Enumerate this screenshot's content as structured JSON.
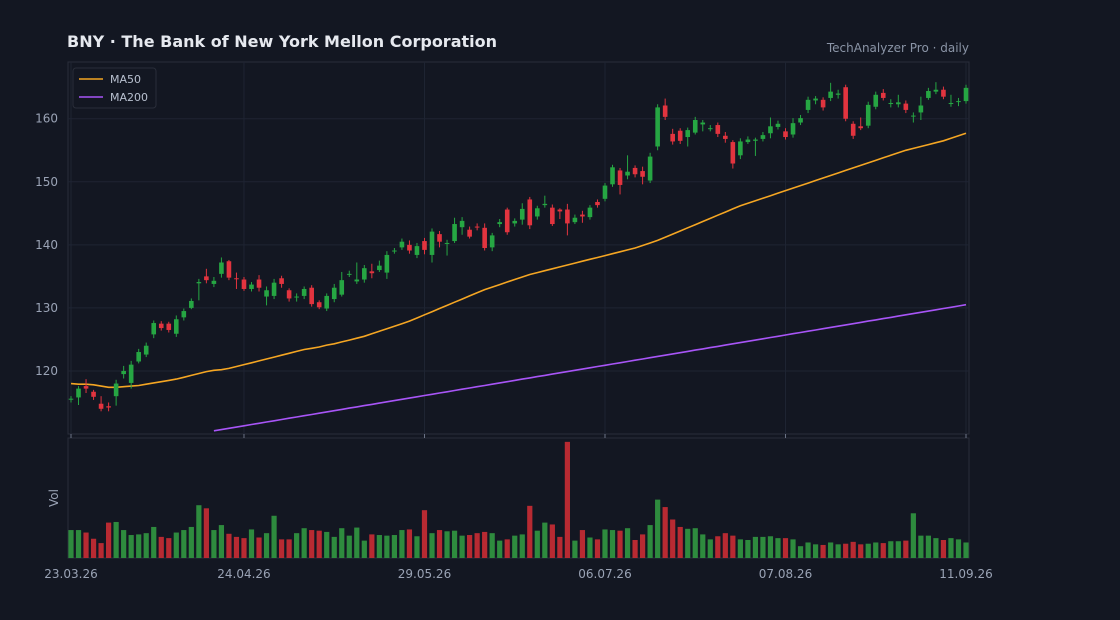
{
  "header": {
    "title": "BNY  ·  The Bank of New York Mellon Corporation",
    "source": "TechAnalyzer Pro · daily"
  },
  "colors": {
    "background": "#131722",
    "panel_border": "#2a2e3a",
    "grid": "#1f2433",
    "up": "#26a643",
    "down": "#e2343f",
    "vol_up": "#2e8b3e",
    "vol_down": "#b82a32",
    "ma50": "#f5a623",
    "ma200": "#a855f7"
  },
  "chart_data": {
    "type": "candlestick",
    "title": "BNY  ·  The Bank of New York Mellon Corporation",
    "subtitle": "TechAnalyzer Pro · daily",
    "y_ticks": [
      120,
      130,
      140,
      150,
      160
    ],
    "ylim": [
      110.0,
      169.0
    ],
    "x_tick_labels": [
      "23.03.26",
      "24.04.26",
      "29.05.26",
      "06.07.26",
      "07.08.26",
      "11.09.26"
    ],
    "x_tick_index": [
      0,
      23,
      47,
      71,
      95,
      119
    ],
    "legend": {
      "position": "top-left",
      "entries": [
        "MA50",
        "MA200"
      ]
    },
    "volume_label": "Vol",
    "grid": true,
    "candles": [
      [
        115.5,
        115.6,
        115.0,
        116.0
      ],
      [
        115.8,
        117.2,
        114.6,
        117.6
      ],
      [
        117.6,
        117.2,
        116.5,
        118.7
      ],
      [
        116.7,
        115.9,
        115.4,
        117.0
      ],
      [
        114.8,
        114.0,
        113.6,
        116.0
      ],
      [
        114.4,
        114.2,
        113.6,
        115.0
      ],
      [
        116.0,
        118.0,
        114.5,
        118.6
      ],
      [
        119.5,
        120.0,
        118.8,
        120.8
      ],
      [
        118.1,
        121.0,
        117.2,
        121.6
      ],
      [
        121.5,
        123.0,
        121.2,
        123.5
      ],
      [
        122.6,
        124.0,
        122.2,
        124.5
      ],
      [
        125.8,
        127.6,
        125.2,
        128.0
      ],
      [
        127.5,
        126.8,
        126.4,
        127.9
      ],
      [
        127.5,
        126.5,
        126.1,
        127.8
      ],
      [
        125.9,
        128.2,
        125.4,
        128.8
      ],
      [
        128.5,
        129.5,
        128.0,
        129.9
      ],
      [
        130.0,
        131.1,
        129.8,
        131.5
      ],
      [
        133.9,
        134.1,
        131.2,
        134.6
      ],
      [
        135.0,
        134.4,
        133.9,
        136.2
      ],
      [
        133.8,
        134.3,
        133.3,
        134.9
      ],
      [
        135.4,
        137.2,
        134.8,
        138.0
      ],
      [
        137.4,
        134.8,
        134.4,
        137.6
      ],
      [
        134.7,
        134.6,
        133.0,
        135.6
      ],
      [
        134.5,
        133.0,
        132.7,
        134.9
      ],
      [
        133.0,
        133.7,
        132.6,
        134.1
      ],
      [
        134.5,
        133.2,
        132.6,
        135.2
      ],
      [
        131.8,
        132.8,
        130.4,
        133.4
      ],
      [
        131.9,
        134.0,
        131.4,
        134.6
      ],
      [
        134.7,
        133.8,
        133.2,
        135.1
      ],
      [
        132.8,
        131.5,
        131.0,
        133.1
      ],
      [
        131.7,
        131.8,
        131.0,
        132.3
      ],
      [
        131.9,
        133.0,
        131.4,
        133.4
      ],
      [
        133.2,
        130.6,
        130.2,
        133.6
      ],
      [
        130.9,
        130.1,
        129.8,
        131.2
      ],
      [
        129.9,
        131.9,
        129.5,
        132.3
      ],
      [
        131.4,
        133.2,
        130.9,
        133.8
      ],
      [
        132.1,
        134.4,
        131.8,
        135.7
      ],
      [
        135.3,
        135.4,
        134.9,
        135.9
      ],
      [
        134.2,
        134.5,
        133.8,
        137.2
      ],
      [
        134.5,
        136.3,
        134.0,
        136.8
      ],
      [
        135.8,
        135.5,
        134.7,
        137.0
      ],
      [
        136.0,
        136.7,
        135.7,
        137.5
      ],
      [
        135.6,
        138.4,
        134.6,
        139.0
      ],
      [
        139.1,
        139.1,
        138.6,
        139.5
      ],
      [
        139.6,
        140.5,
        139.2,
        141.0
      ],
      [
        140.0,
        139.1,
        138.6,
        140.7
      ],
      [
        138.4,
        139.8,
        137.9,
        140.3
      ],
      [
        140.6,
        139.2,
        138.5,
        141.1
      ],
      [
        138.4,
        142.1,
        137.2,
        142.6
      ],
      [
        141.7,
        140.5,
        139.6,
        142.2
      ],
      [
        140.3,
        140.3,
        138.3,
        140.8
      ],
      [
        140.6,
        143.3,
        140.3,
        144.3
      ],
      [
        142.8,
        143.8,
        141.6,
        144.4
      ],
      [
        142.4,
        141.3,
        141.0,
        142.9
      ],
      [
        142.9,
        142.8,
        142.3,
        143.4
      ],
      [
        142.7,
        139.5,
        139.1,
        143.4
      ],
      [
        139.6,
        141.5,
        139.0,
        141.9
      ],
      [
        143.3,
        143.6,
        142.8,
        144.1
      ],
      [
        145.6,
        142.0,
        141.6,
        145.9
      ],
      [
        143.4,
        143.8,
        142.9,
        144.2
      ],
      [
        144.0,
        145.7,
        143.2,
        146.6
      ],
      [
        147.2,
        143.1,
        142.5,
        147.6
      ],
      [
        144.5,
        145.8,
        144.0,
        146.2
      ],
      [
        146.3,
        146.5,
        145.9,
        147.8
      ],
      [
        145.9,
        143.3,
        143.0,
        146.4
      ],
      [
        145.6,
        145.3,
        144.1,
        145.8
      ],
      [
        145.6,
        143.4,
        141.5,
        146.5
      ],
      [
        143.6,
        144.3,
        143.3,
        144.8
      ],
      [
        144.8,
        144.5,
        143.5,
        145.4
      ],
      [
        144.4,
        145.9,
        144.0,
        146.3
      ],
      [
        146.8,
        146.3,
        145.9,
        147.2
      ],
      [
        147.3,
        149.4,
        146.9,
        149.8
      ],
      [
        149.6,
        152.3,
        149.2,
        152.7
      ],
      [
        151.8,
        149.5,
        148.0,
        152.2
      ],
      [
        151.0,
        151.6,
        150.4,
        154.2
      ],
      [
        152.2,
        151.2,
        150.7,
        152.6
      ],
      [
        151.7,
        150.8,
        149.6,
        152.4
      ],
      [
        150.2,
        154.0,
        149.8,
        154.6
      ],
      [
        155.6,
        161.8,
        155.0,
        162.3
      ],
      [
        162.1,
        160.3,
        159.8,
        163.2
      ],
      [
        157.6,
        156.4,
        155.9,
        158.4
      ],
      [
        158.1,
        156.5,
        156.0,
        158.5
      ],
      [
        157.1,
        158.2,
        155.6,
        158.6
      ],
      [
        157.8,
        159.8,
        157.5,
        160.3
      ],
      [
        159.1,
        159.4,
        158.0,
        159.8
      ],
      [
        158.5,
        158.5,
        158.0,
        159.0
      ],
      [
        159.0,
        157.6,
        157.1,
        159.4
      ],
      [
        157.3,
        156.8,
        156.2,
        157.9
      ],
      [
        156.3,
        152.9,
        152.1,
        156.6
      ],
      [
        154.2,
        156.4,
        153.6,
        156.9
      ],
      [
        156.3,
        156.7,
        156.0,
        157.2
      ],
      [
        156.5,
        156.7,
        154.1,
        157.0
      ],
      [
        156.8,
        157.4,
        156.4,
        157.9
      ],
      [
        157.7,
        158.8,
        156.9,
        160.2
      ],
      [
        158.7,
        159.2,
        158.3,
        159.7
      ],
      [
        158.0,
        157.1,
        156.7,
        158.5
      ],
      [
        157.5,
        159.3,
        157.0,
        160.1
      ],
      [
        159.4,
        160.1,
        159.0,
        160.6
      ],
      [
        161.4,
        163.0,
        160.9,
        163.5
      ],
      [
        162.9,
        163.2,
        162.3,
        163.6
      ],
      [
        163.0,
        161.8,
        161.3,
        163.4
      ],
      [
        163.3,
        164.3,
        162.8,
        165.7
      ],
      [
        163.8,
        164.0,
        163.2,
        164.6
      ],
      [
        165.0,
        160.0,
        159.6,
        165.4
      ],
      [
        159.2,
        157.3,
        156.8,
        159.6
      ],
      [
        158.8,
        158.5,
        158.2,
        160.2
      ],
      [
        158.9,
        162.2,
        158.5,
        162.7
      ],
      [
        161.9,
        163.8,
        161.5,
        164.3
      ],
      [
        164.1,
        163.3,
        162.9,
        164.7
      ],
      [
        162.5,
        162.5,
        161.8,
        163.1
      ],
      [
        162.3,
        162.6,
        161.8,
        163.8
      ],
      [
        162.4,
        161.4,
        160.9,
        162.9
      ],
      [
        160.4,
        160.5,
        159.4,
        161.0
      ],
      [
        161.0,
        162.1,
        159.8,
        163.5
      ],
      [
        163.3,
        164.4,
        163.0,
        164.9
      ],
      [
        164.3,
        164.6,
        163.9,
        165.8
      ],
      [
        164.6,
        163.5,
        163.1,
        165.1
      ],
      [
        162.4,
        162.5,
        161.9,
        163.8
      ],
      [
        162.8,
        162.8,
        162.0,
        163.3
      ],
      [
        162.8,
        164.9,
        162.4,
        165.4
      ]
    ],
    "volume": [
      45,
      45,
      41,
      31,
      24,
      57,
      58,
      45,
      37,
      38,
      40,
      50,
      34,
      32,
      41,
      45,
      50,
      85,
      80,
      45,
      53,
      39,
      34,
      32,
      46,
      33,
      40,
      68,
      30,
      30,
      40,
      48,
      45,
      44,
      42,
      34,
      48,
      36,
      49,
      28,
      38,
      37,
      36,
      37,
      45,
      46,
      35,
      77,
      40,
      45,
      43,
      44,
      36,
      37,
      40,
      42,
      40,
      28,
      30,
      36,
      38,
      84,
      44,
      57,
      54,
      34,
      187,
      28,
      45,
      33,
      30,
      46,
      45,
      44,
      48,
      29,
      38,
      53,
      94,
      82,
      62,
      50,
      47,
      48,
      38,
      30,
      35,
      40,
      36,
      30,
      29,
      34,
      34,
      35,
      32,
      32,
      30,
      19,
      25,
      22,
      21,
      25,
      22,
      23,
      26,
      22,
      23,
      25,
      24,
      27,
      27,
      28,
      72,
      36,
      36,
      32,
      29,
      32,
      30,
      25
    ],
    "volume_max": 190,
    "ma50_start_index": 0,
    "ma50": [
      118.0,
      117.9,
      117.9,
      117.8,
      117.6,
      117.4,
      117.4,
      117.5,
      117.6,
      117.7,
      117.9,
      118.1,
      118.3,
      118.5,
      118.7,
      119.0,
      119.3,
      119.6,
      119.9,
      120.1,
      120.2,
      120.4,
      120.7,
      121.0,
      121.3,
      121.6,
      121.9,
      122.2,
      122.5,
      122.8,
      123.1,
      123.4,
      123.6,
      123.8,
      124.1,
      124.3,
      124.6,
      124.9,
      125.2,
      125.5,
      125.9,
      126.3,
      126.7,
      127.1,
      127.5,
      127.9,
      128.4,
      128.9,
      129.4,
      129.9,
      130.4,
      130.9,
      131.4,
      131.9,
      132.4,
      132.9,
      133.3,
      133.7,
      134.1,
      134.5,
      134.9,
      135.3,
      135.6,
      135.9,
      136.2,
      136.5,
      136.8,
      137.1,
      137.4,
      137.7,
      138.0,
      138.3,
      138.6,
      138.9,
      139.2,
      139.5,
      139.9,
      140.3,
      140.7,
      141.2,
      141.7,
      142.2,
      142.7,
      143.2,
      143.7,
      144.2,
      144.7,
      145.2,
      145.7,
      146.2,
      146.6,
      147.0,
      147.4,
      147.8,
      148.2,
      148.6,
      149.0,
      149.4,
      149.8,
      150.2,
      150.6,
      151.0,
      151.4,
      151.8,
      152.2,
      152.6,
      153.0,
      153.4,
      153.8,
      154.2,
      154.6,
      155.0,
      155.3,
      155.6,
      155.9,
      156.2,
      156.5,
      156.9,
      157.3,
      157.7
    ],
    "ma200_start_index": 19,
    "ma200": [
      110.5,
      110.7,
      110.9,
      111.1,
      111.3,
      111.5,
      111.7,
      111.9,
      112.1,
      112.3,
      112.5,
      112.7,
      112.9,
      113.1,
      113.3,
      113.5,
      113.7,
      113.9,
      114.1,
      114.3,
      114.5,
      114.7,
      114.9,
      115.1,
      115.3,
      115.5,
      115.7,
      115.9,
      116.1,
      116.3,
      116.5,
      116.7,
      116.9,
      117.1,
      117.3,
      117.5,
      117.7,
      117.9,
      118.1,
      118.3,
      118.5,
      118.7,
      118.9,
      119.1,
      119.3,
      119.5,
      119.7,
      119.9,
      120.1,
      120.3,
      120.5,
      120.7,
      120.9,
      121.1,
      121.3,
      121.5,
      121.7,
      121.9,
      122.1,
      122.3,
      122.5,
      122.7,
      122.9,
      123.1,
      123.3,
      123.5,
      123.7,
      123.9,
      124.1,
      124.3,
      124.5,
      124.7,
      124.9,
      125.1,
      125.3,
      125.5,
      125.7,
      125.9,
      126.1,
      126.3,
      126.5,
      126.7,
      126.9,
      127.1,
      127.3,
      127.5,
      127.7,
      127.9,
      128.1,
      128.3,
      128.5,
      128.7,
      128.9,
      129.1,
      129.3,
      129.5,
      129.7,
      129.9,
      130.1,
      130.3,
      130.5
    ]
  }
}
